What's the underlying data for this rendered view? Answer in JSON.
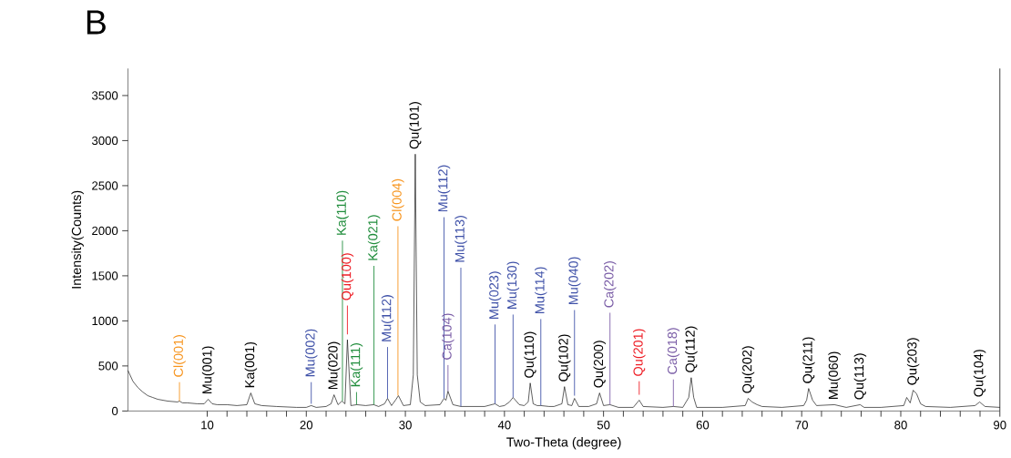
{
  "chart_data": {
    "type": "line",
    "title": "B",
    "xlabel": "Two-Theta (degree)",
    "ylabel": "Intensity(Counts)",
    "xlim": [
      2,
      90
    ],
    "xticks": [
      10,
      20,
      30,
      40,
      50,
      60,
      70,
      80,
      90
    ],
    "ylim": [
      0,
      3800
    ],
    "yticks": [
      0,
      500,
      1000,
      1500,
      2000,
      2500,
      3000,
      3500
    ],
    "grid": false,
    "series": [
      {
        "color": "#000000",
        "x": [
          2,
          2.5,
          3,
          3.5,
          4,
          4.5,
          5,
          6,
          7,
          7.2,
          7.5,
          8,
          9,
          9.7,
          10.1,
          10.5,
          11,
          12,
          13,
          14,
          14.4,
          14.8,
          15.5,
          17,
          19,
          20,
          20.5,
          21,
          22,
          22.5,
          22.8,
          23.2,
          23.6,
          23.9,
          24.15,
          24.5,
          25.1,
          26,
          26.8,
          27.3,
          27.9,
          28.2,
          28.6,
          29.0,
          29.3,
          29.8,
          30.5,
          30.8,
          31.0,
          31.2,
          31.5,
          32,
          33.5,
          33.9,
          34.1,
          34.3,
          34.8,
          35.6,
          37,
          38,
          39.05,
          39.5,
          40.0,
          40.5,
          40.87,
          41.5,
          42.0,
          42.4,
          42.6,
          42.9,
          43.3,
          43.67,
          44.5,
          45,
          45.8,
          46.06,
          46.4,
          46.8,
          47.07,
          47.5,
          48.5,
          49.3,
          49.6,
          50.0,
          50.65,
          51.5,
          53.0,
          53.6,
          54.0,
          56.0,
          57.05,
          58.0,
          58.6,
          58.85,
          59.1,
          59.4,
          62,
          64.3,
          64.6,
          65.0,
          65.5,
          66,
          68,
          70.2,
          70.5,
          70.7,
          71.1,
          71.5,
          73.3,
          74.5,
          75.9,
          76.3,
          78,
          80.3,
          80.6,
          80.95,
          81.25,
          81.6,
          82.0,
          82.5,
          85,
          87.5,
          87.96,
          88.5,
          90
        ],
        "values": [
          450,
          330,
          260,
          210,
          170,
          150,
          130,
          110,
          100,
          110,
          90,
          90,
          80,
          80,
          130,
          80,
          70,
          70,
          60,
          70,
          200,
          80,
          60,
          50,
          40,
          40,
          60,
          40,
          50,
          80,
          180,
          70,
          110,
          80,
          790,
          60,
          70,
          60,
          70,
          50,
          80,
          140,
          60,
          120,
          170,
          60,
          70,
          400,
          2850,
          400,
          100,
          60,
          70,
          140,
          120,
          220,
          70,
          50,
          50,
          50,
          80,
          50,
          60,
          100,
          150,
          70,
          60,
          100,
          310,
          80,
          60,
          60,
          50,
          50,
          80,
          270,
          70,
          60,
          140,
          50,
          50,
          80,
          200,
          60,
          70,
          40,
          40,
          120,
          50,
          40,
          50,
          40,
          150,
          370,
          150,
          40,
          40,
          60,
          140,
          100,
          70,
          50,
          40,
          60,
          120,
          250,
          120,
          60,
          70,
          40,
          70,
          40,
          40,
          60,
          150,
          90,
          230,
          190,
          80,
          50,
          40,
          60,
          100,
          50,
          40
        ]
      },
      {
        "color": "#f7941d",
        "x": [
          7.2,
          7.2
        ],
        "values": [
          110,
          320
        ]
      },
      {
        "color": "#3f51a8",
        "x": [
          20.5,
          20.5
        ],
        "values": [
          80,
          320
        ]
      },
      {
        "color": "#1e8c3a",
        "x": [
          23.65,
          23.65
        ],
        "values": [
          110,
          1890
        ]
      },
      {
        "color": "#ee1c24",
        "x": [
          24.15,
          24.15
        ],
        "values": [
          850,
          1170
        ]
      },
      {
        "color": "#1e8c3a",
        "x": [
          25.07,
          25.07
        ],
        "values": [
          70,
          210
        ]
      },
      {
        "color": "#1e8c3a",
        "x": [
          26.83,
          26.83
        ],
        "values": [
          70,
          1610
        ]
      },
      {
        "color": "#3f51a8",
        "x": [
          28.2,
          28.2
        ],
        "values": [
          140,
          710
        ]
      },
      {
        "color": "#f7941d",
        "x": [
          29.25,
          29.25
        ],
        "values": [
          170,
          2050
        ]
      },
      {
        "color": "#3f51a8",
        "x": [
          33.9,
          33.9
        ],
        "values": [
          140,
          2150
        ]
      },
      {
        "color": "#7b5ea7",
        "x": [
          34.3,
          34.3
        ],
        "values": [
          220,
          510
        ]
      },
      {
        "color": "#3f51a8",
        "x": [
          35.6,
          35.6
        ],
        "values": [
          50,
          1590
        ]
      },
      {
        "color": "#3f51a8",
        "x": [
          39.05,
          39.05
        ],
        "values": [
          80,
          960
        ]
      },
      {
        "color": "#3f51a8",
        "x": [
          40.87,
          40.87
        ],
        "values": [
          150,
          1070
        ]
      },
      {
        "color": "#3f51a8",
        "x": [
          43.67,
          43.67
        ],
        "values": [
          60,
          1020
        ]
      },
      {
        "color": "#3f51a8",
        "x": [
          47.07,
          47.07
        ],
        "values": [
          170,
          1120
        ]
      },
      {
        "color": "#7b5ea7",
        "x": [
          50.65,
          50.65
        ],
        "values": [
          70,
          1090
        ]
      },
      {
        "color": "#ee1c24",
        "x": [
          53.6,
          53.6
        ],
        "values": [
          180,
          330
        ]
      },
      {
        "color": "#7b5ea7",
        "x": [
          57.05,
          57.05
        ],
        "values": [
          50,
          350
        ]
      }
    ],
    "annotations": [
      {
        "text": "Cl(001)",
        "x": 7.2,
        "y": 320
      },
      {
        "text": "Mu(001)",
        "x": 10.1,
        "y": 130
      },
      {
        "text": "Ka(001)",
        "x": 14.4,
        "y": 200
      },
      {
        "text": "Mu(002)",
        "x": 20.5,
        "y": 320
      },
      {
        "text": "Mu(020)",
        "x": 22.8,
        "y": 180
      },
      {
        "text": "Ka(110)",
        "x": 23.65,
        "y": 1890
      },
      {
        "text": "Qu(100)",
        "x": 24.15,
        "y": 1170
      },
      {
        "text": "Ka(111)",
        "x": 25.07,
        "y": 210
      },
      {
        "text": "Ka(021)",
        "x": 26.83,
        "y": 1610
      },
      {
        "text": "Mu(112)",
        "x": 28.2,
        "y": 710
      },
      {
        "text": "Cl(004)",
        "x": 29.25,
        "y": 2050
      },
      {
        "text": "Qu(101)",
        "x": 31.0,
        "y": 2850
      },
      {
        "text": "Mu(112)",
        "x": 33.9,
        "y": 2150
      },
      {
        "text": "Ca(104)",
        "x": 34.3,
        "y": 510
      },
      {
        "text": "Mu(113)",
        "x": 35.6,
        "y": 1590
      },
      {
        "text": "Mu(023)",
        "x": 39.05,
        "y": 960
      },
      {
        "text": "Mu(130)",
        "x": 40.87,
        "y": 1070
      },
      {
        "text": "Qu(110)",
        "x": 42.6,
        "y": 310
      },
      {
        "text": "Mu(114)",
        "x": 43.67,
        "y": 1020
      },
      {
        "text": "Qu(102)",
        "x": 46.06,
        "y": 270
      },
      {
        "text": "Mu(040)",
        "x": 47.07,
        "y": 1120
      },
      {
        "text": "Qu(200)",
        "x": 49.6,
        "y": 200
      },
      {
        "text": "Ca(202)",
        "x": 50.65,
        "y": 1090
      },
      {
        "text": "Qu(201)",
        "x": 53.6,
        "y": 330
      },
      {
        "text": "Ca(018)",
        "x": 57.05,
        "y": 350
      },
      {
        "text": "Qu(112)",
        "x": 58.85,
        "y": 370
      },
      {
        "text": "Qu(202)",
        "x": 64.6,
        "y": 140
      },
      {
        "text": "Qu(211)",
        "x": 70.7,
        "y": 250
      },
      {
        "text": "Mu(060)",
        "x": 73.3,
        "y": 70
      },
      {
        "text": "Qu(113)",
        "x": 75.9,
        "y": 70
      },
      {
        "text": "Qu(203)",
        "x": 81.25,
        "y": 230
      },
      {
        "text": "Qu(104)",
        "x": 87.96,
        "y": 100
      }
    ]
  }
}
